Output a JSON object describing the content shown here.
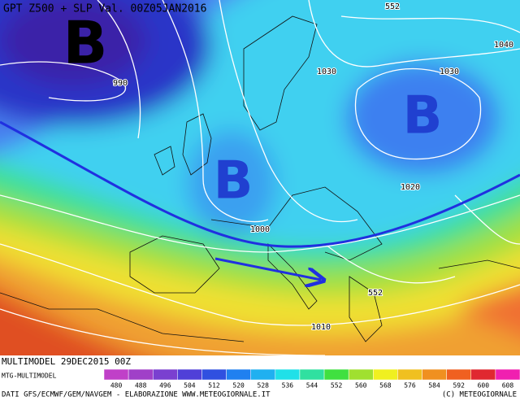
{
  "header": {
    "title": "GPT Z500 + SLP Val. 00Z05JAN2016"
  },
  "map": {
    "labels": [
      {
        "text": "B"
      },
      {
        "text": "B"
      },
      {
        "text": "B"
      },
      {
        "text": "990"
      },
      {
        "text": "1030"
      },
      {
        "text": "1030"
      },
      {
        "text": "1040"
      },
      {
        "text": "1020"
      },
      {
        "text": "1000"
      },
      {
        "text": "1010"
      },
      {
        "text": "552"
      },
      {
        "text": "552"
      }
    ]
  },
  "footer": {
    "model_run": "MULTIMODEL 29DEC2015 00Z",
    "model_name": "MTG-MULTIMODEL",
    "colorbar": {
      "labels": [
        "480",
        "488",
        "496",
        "504",
        "512",
        "520",
        "528",
        "536",
        "544",
        "552",
        "560",
        "568",
        "576",
        "584",
        "592",
        "600",
        "608"
      ],
      "colors": [
        "#c040c8",
        "#a040c8",
        "#7a40d0",
        "#5040d8",
        "#3050e0",
        "#2080f0",
        "#20b0f0",
        "#20e0e8",
        "#30e0a0",
        "#40e040",
        "#a0e030",
        "#f0f020",
        "#f0c020",
        "#f09020",
        "#f06020",
        "#e02830",
        "#f020b0"
      ]
    },
    "credits": "DATI GFS/ECMWF/GEM/NAVGEM - ELABORAZIONE WWW.METEOGIORNALE.IT",
    "copyright": "(C) METEOGIORNALE"
  }
}
